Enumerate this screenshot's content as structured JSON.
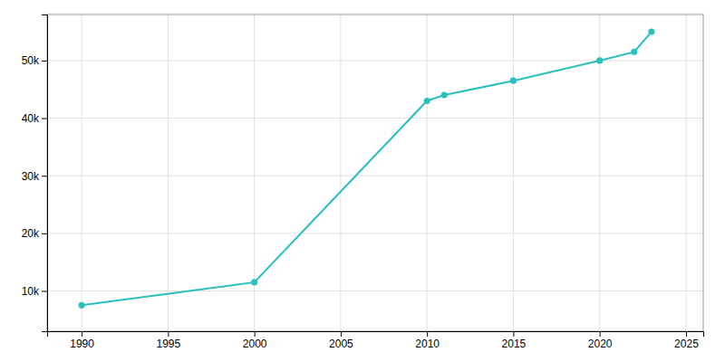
{
  "chart_data": {
    "type": "line",
    "x": [
      1990,
      2000,
      2010,
      2011,
      2015,
      2020,
      2022,
      2023
    ],
    "values": [
      7500,
      11500,
      43000,
      44000,
      46500,
      50000,
      51500,
      55000
    ],
    "color": "#2ABFBF",
    "marker": "circle",
    "xlim": [
      1988,
      2026
    ],
    "ylim": [
      3000,
      58000
    ],
    "xticks": [
      1990,
      1995,
      2000,
      2005,
      2010,
      2015,
      2020,
      2025
    ],
    "yticks": [
      {
        "value": 10000,
        "label": "10k"
      },
      {
        "value": 20000,
        "label": "20k"
      },
      {
        "value": 30000,
        "label": "30k"
      },
      {
        "value": 40000,
        "label": "40k"
      },
      {
        "value": 50000,
        "label": "50k"
      }
    ],
    "grid": true
  }
}
